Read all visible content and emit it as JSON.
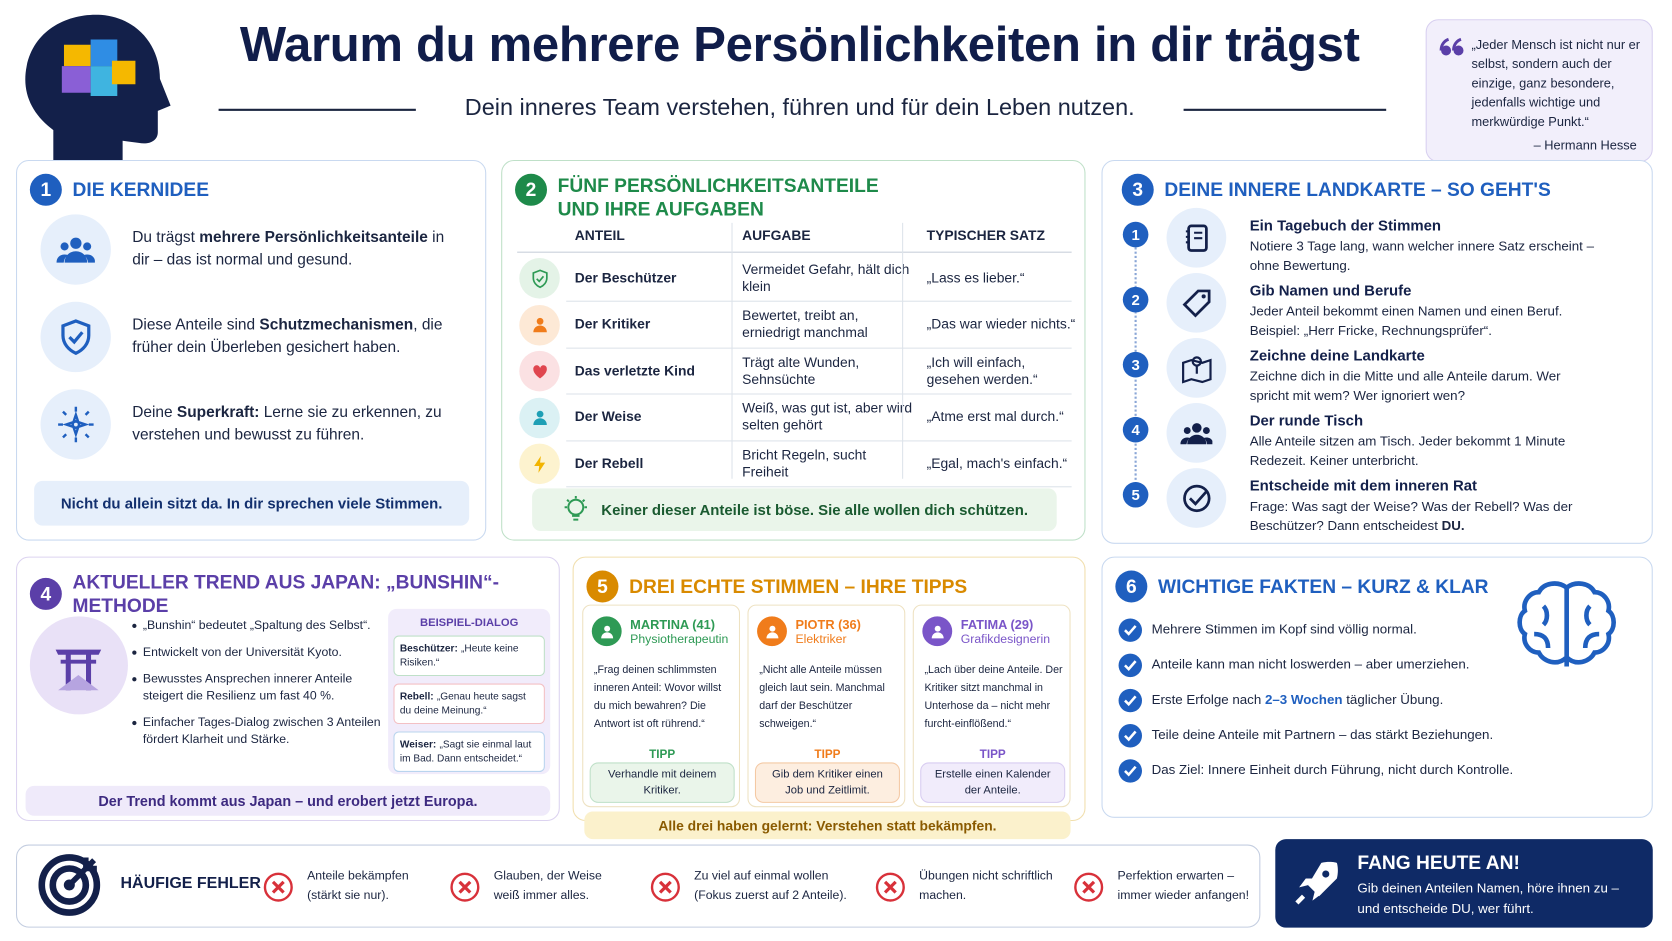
{
  "header": {
    "title": "Warum du mehrere Persönlichkeiten in dir trägst",
    "subtitle": "Dein inneres Team verstehen, führen und für dein Leben nutzen.",
    "quote": {
      "text": "„Jeder Mensch ist nicht nur er selbst, sondern auch der einzige, ganz besondere, jedenfalls wichtige und merkwürdige Punkt.“",
      "author": "– Hermann Hesse"
    }
  },
  "section1": {
    "number": 1,
    "title": "DIE KERNIDEE",
    "items": [
      [
        "Du trägst ",
        "mehrere Persönlichkeitsanteile",
        " in dir – das ist normal und gesund."
      ],
      [
        "Diese Anteile sind ",
        "Schutzmechanismen",
        ", die früher dein Überleben gesichert haben."
      ],
      [
        "Deine ",
        "Superkraft:",
        " Lerne sie zu erkennen, zu verstehen und bewusst zu führen."
      ]
    ],
    "note": "Nicht du allein sitzt da. In dir sprechen viele Stimmen."
  },
  "section2": {
    "number": 2,
    "title": "FÜNF PERSÖNLICHKEITSANTEILE UND IHRE AUFGABEN",
    "headers": [
      "ANTEIL",
      "AUFGABE",
      "TYPISCHER SATZ"
    ],
    "rows": [
      [
        "Der Beschützer",
        "Vermeidet Gefahr, hält dich klein",
        "„Lass es lieber.“"
      ],
      [
        "Der Kritiker",
        "Bewertet, treibt an, erniedrigt manchmal",
        "„Das war wieder nichts.“"
      ],
      [
        "Das verletzte Kind",
        "Trägt alte Wunden, Sehnsüchte",
        "„Ich will einfach, gesehen werden.“"
      ],
      [
        "Der Weise",
        "Weiß, was gut ist, aber wird selten gehört",
        "„Atme erst mal durch.“"
      ],
      [
        "Der Rebell",
        "Bricht Regeln, sucht Freiheit",
        "„Egal, mach's einfach.“"
      ]
    ],
    "note": "Keiner dieser Anteile ist böse. Sie alle wollen dich schützen."
  },
  "section3": {
    "number": 3,
    "title": "DEINE INNERE LANDKARTE – SO GEHT'S",
    "steps": [
      {
        "number": 1,
        "title": "Ein Tagebuch der Stimmen",
        "text": "Notiere 3 Tage lang, wann welcher innere Satz erscheint – ohne Bewertung."
      },
      {
        "number": 2,
        "title": "Gib Namen und Berufe",
        "text": "Jeder Anteil bekommt einen Namen und einen Beruf. Beispiel: „Herr Fricke, Rechnungsprüfer“."
      },
      {
        "number": 3,
        "title": "Zeichne deine Landkarte",
        "text": "Zeichne dich in die Mitte und alle Anteile darum. Wer spricht mit wem? Wer ignoriert wen?"
      },
      {
        "number": 4,
        "title": "Der runde Tisch",
        "text": "Alle Anteile sitzen am Tisch. Jeder bekommt 1 Minute Redezeit. Keiner unterbricht."
      },
      {
        "number": 5,
        "title": "Entscheide mit dem inneren Rat",
        "text": "Frage: Was sagt der Weise? Was der Rebell? Was der Beschützer? Dann entscheidest ",
        "bold": "DU."
      }
    ]
  },
  "section4": {
    "number": 4,
    "title": "AKTUELLER TREND AUS JAPAN: „BUNSHIN“-METHODE",
    "bullets": [
      "„Bunshin“ bedeutet „Spaltung des Selbst“.",
      "Entwickelt von der Universität Kyoto.",
      "Bewusstes Ansprechen innerer Anteile steigert die Resilienz um fast 40 %.",
      "Einfacher Tages-Dialog zwischen 3 Anteilen fördert Klarheit und Stärke."
    ],
    "dialog": {
      "title": "BEISPIEL-DIALOG",
      "lines": [
        {
          "speaker": "Beschützer:",
          "text": "„Heute keine Risiken.“"
        },
        {
          "speaker": "Rebell:",
          "text": "„Genau heute sagst du deine Meinung.“"
        },
        {
          "speaker": "Weiser:",
          "text": "„Sagt sie einmal laut im Bad. Dann entscheidet.“"
        }
      ]
    },
    "note": "Der Trend kommt aus Japan – und erobert jetzt Europa."
  },
  "section5": {
    "number": 5,
    "title": "DREI ECHTE STIMMEN – IHRE TIPPS",
    "voices": [
      {
        "name": "MARTINA (41)",
        "role": "Physiotherapeutin",
        "quote": "„Frag deinen schlimmsten inneren Anteil: Wovor willst du mich bewahren? Die Antwort ist oft rührend.“",
        "tip_label": "TIPP",
        "tip": "Verhandle mit deinem Kritiker."
      },
      {
        "name": "PIOTR (36)",
        "role": "Elektriker",
        "quote": "„Nicht alle Anteile müssen gleich laut sein. Manchmal darf der Beschützer schweigen.“",
        "tip_label": "TIPP",
        "tip": "Gib dem Kritiker einen Job und Zeitlimit."
      },
      {
        "name": "FATIMA (29)",
        "role": "Grafikdesignerin",
        "quote": "„Lach über deine Anteile. Der Kritiker sitzt manchmal in Unterhose da – nicht mehr furcht-einflößend.“",
        "tip_label": "TIPP",
        "tip": "Erstelle einen Kalender der Anteile."
      }
    ],
    "note": "Alle drei haben gelernt: Verstehen statt bekämpfen."
  },
  "section6": {
    "number": 6,
    "title": "WICHTIGE FAKTEN – KURZ & KLAR",
    "facts": [
      [
        "Mehrere Stimmen im Kopf sind völlig normal."
      ],
      [
        "Anteile kann man nicht loswerden – aber umerziehen."
      ],
      [
        "Erste Erfolge nach ",
        "2–3 Wochen",
        " täglicher Übung."
      ],
      [
        "Teile deine Anteile mit Partnern – das stärkt Beziehungen."
      ],
      [
        "Das Ziel: Innere Einheit durch Führung, nicht durch Kontrolle."
      ]
    ]
  },
  "mistakes": {
    "title": "HÄUFIGE FEHLER",
    "items": [
      "Anteile bekämpfen (stärkt sie nur).",
      "Glauben, der Weise weiß immer alles.",
      "Zu viel auf einmal wollen (Fokus zuerst auf 2 Anteile).",
      "Übungen nicht schriftlich machen.",
      "Perfektion erwarten – immer wieder anfangen!"
    ]
  },
  "cta": {
    "title": "FANG HEUTE AN!",
    "text": "Gib deinen Anteilen Namen, höre ihnen zu – und entscheide DU, wer führt."
  }
}
